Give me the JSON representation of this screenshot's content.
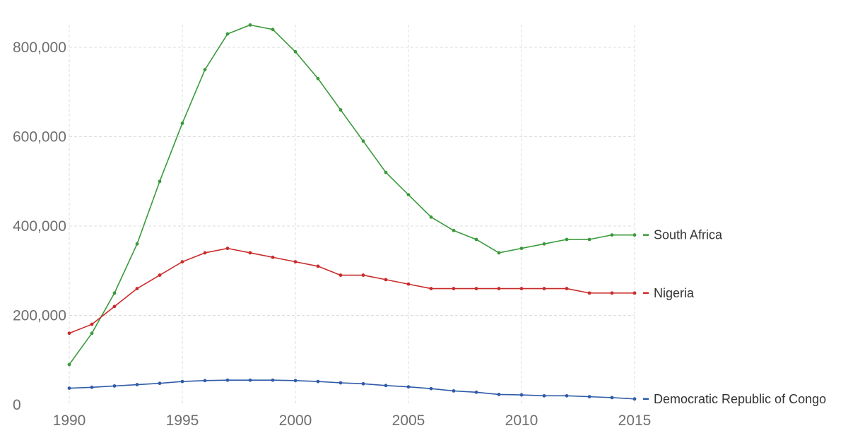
{
  "chart_data": {
    "type": "line",
    "title": "",
    "xlabel": "",
    "ylabel": "",
    "x": [
      1990,
      1991,
      1992,
      1993,
      1994,
      1995,
      1996,
      1997,
      1998,
      1999,
      2000,
      2001,
      2002,
      2003,
      2004,
      2005,
      2006,
      2007,
      2008,
      2009,
      2010,
      2011,
      2012,
      2013,
      2014,
      2015
    ],
    "xlim": [
      1990,
      2015
    ],
    "ylim": [
      0,
      850000
    ],
    "xticks": [
      1990,
      1995,
      2000,
      2005,
      2010,
      2015
    ],
    "xtick_labels": [
      "1990",
      "1995",
      "2000",
      "2005",
      "2010",
      "2015"
    ],
    "yticks": [
      0,
      200000,
      400000,
      600000,
      800000
    ],
    "ytick_labels": [
      "0",
      "200,000",
      "400,000",
      "600,000",
      "800,000"
    ],
    "grid": true,
    "legend_placement": "right, at line ends",
    "series": [
      {
        "name": "South Africa",
        "color": "#3a9a3a",
        "values": [
          90000,
          160000,
          250000,
          360000,
          500000,
          630000,
          750000,
          830000,
          850000,
          840000,
          790000,
          730000,
          660000,
          590000,
          520000,
          470000,
          420000,
          390000,
          370000,
          340000,
          350000,
          360000,
          370000,
          370000,
          380000,
          380000
        ]
      },
      {
        "name": "Nigeria",
        "color": "#c92b2b",
        "values": [
          160000,
          180000,
          220000,
          260000,
          290000,
          320000,
          340000,
          350000,
          340000,
          330000,
          320000,
          310000,
          290000,
          290000,
          280000,
          270000,
          260000,
          260000,
          260000,
          260000,
          260000,
          260000,
          260000,
          250000,
          250000,
          250000
        ]
      },
      {
        "name": "Democratic Republic of Congo",
        "color": "#2f5ba8",
        "values": [
          37000,
          39000,
          42000,
          45000,
          48000,
          52000,
          54000,
          55000,
          55000,
          55000,
          54000,
          52000,
          49000,
          47000,
          43000,
          40000,
          36000,
          31000,
          28000,
          23000,
          22000,
          20000,
          20000,
          18000,
          16000,
          13000
        ]
      }
    ]
  }
}
